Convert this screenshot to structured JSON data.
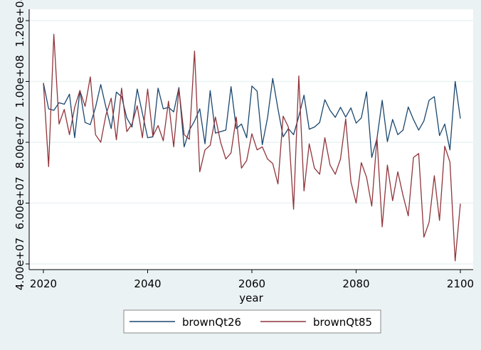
{
  "chart_data": {
    "type": "line",
    "title": "",
    "xlabel": "year",
    "ylabel": "",
    "xlim": [
      2020,
      2100
    ],
    "ylim": [
      40000000,
      120000000
    ],
    "x_ticks": [
      2020,
      2040,
      2060,
      2080,
      2100
    ],
    "x_tick_labels": [
      "2020",
      "2040",
      "2060",
      "2080",
      "2100"
    ],
    "y_ticks": [
      40000000,
      60000000,
      80000000,
      100000000,
      120000000
    ],
    "y_tick_labels": [
      "4.00e+07",
      "6.00e+07",
      "8.00e+07",
      "1.00e+08",
      "1.20e+08"
    ],
    "grid": "horizontal",
    "legend_position": "bottom",
    "x": [
      2020,
      2021,
      2022,
      2023,
      2024,
      2025,
      2026,
      2027,
      2028,
      2029,
      2030,
      2031,
      2032,
      2033,
      2034,
      2035,
      2036,
      2037,
      2038,
      2039,
      2040,
      2041,
      2042,
      2043,
      2044,
      2045,
      2046,
      2047,
      2048,
      2049,
      2050,
      2051,
      2052,
      2053,
      2054,
      2055,
      2056,
      2057,
      2058,
      2059,
      2060,
      2061,
      2062,
      2063,
      2064,
      2065,
      2066,
      2067,
      2068,
      2069,
      2070,
      2071,
      2072,
      2073,
      2074,
      2075,
      2076,
      2077,
      2078,
      2079,
      2080,
      2081,
      2082,
      2083,
      2084,
      2085,
      2086,
      2087,
      2088,
      2089,
      2090,
      2091,
      2092,
      2093,
      2094,
      2095,
      2096,
      2097,
      2098,
      2099,
      2100
    ],
    "series": [
      {
        "name": "brownQt26",
        "color": "#1a476f",
        "values": [
          99.5,
          91,
          90.5,
          93,
          92.5,
          95.8,
          81.5,
          97,
          86.5,
          85.8,
          91.5,
          99,
          91.5,
          84.5,
          96.5,
          95,
          88,
          85,
          97.5,
          89.5,
          81.5,
          81.8,
          97.8,
          91,
          91.5,
          90,
          98,
          78.5,
          84,
          87,
          91,
          79.5,
          97,
          83,
          83.5,
          84,
          98.3,
          84.5,
          86,
          81.5,
          98.5,
          96.8,
          79.2,
          88,
          101,
          91,
          81.8,
          84.5,
          82.5,
          88.5,
          95.5,
          84.3,
          85,
          86.5,
          94,
          90.5,
          88.2,
          91.5,
          88.3,
          91.3,
          86.3,
          88,
          96.6,
          75,
          81.2,
          93.8,
          80.2,
          87.5,
          82.5,
          84,
          91.6,
          87.5,
          84,
          87,
          93.8,
          95,
          82.2,
          86,
          77.5,
          100,
          87.8
        ]
      },
      {
        "name": "brownQt85",
        "color": "#90353b",
        "values": [
          99.5,
          72,
          115.5,
          86,
          90.8,
          82.5,
          91.5,
          97,
          91.8,
          101.5,
          82.5,
          80,
          89,
          94.5,
          80.8,
          97.8,
          83.5,
          86,
          92,
          81.5,
          97.5,
          82,
          85.5,
          80.5,
          93.5,
          78.5,
          97.5,
          82.5,
          81,
          110,
          70.3,
          77.5,
          79,
          88.3,
          80,
          74.5,
          76.5,
          88.3,
          71.5,
          74,
          82.8,
          77.5,
          78.5,
          74.5,
          73,
          66.3,
          88.6,
          85,
          58,
          101.8,
          64,
          79.5,
          71.5,
          69.5,
          81.5,
          72.5,
          69.5,
          74.5,
          87.7,
          67,
          60,
          73.3,
          68.5,
          59,
          81.5,
          52.2,
          72.5,
          60.8,
          70.3,
          62.5,
          55.8,
          75,
          76.3,
          48.8,
          53.7,
          69,
          54.3,
          78.7,
          73.5,
          41,
          59.8
        ]
      }
    ]
  }
}
